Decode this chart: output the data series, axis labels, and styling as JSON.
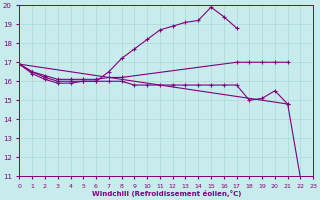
{
  "xlabel": "Windchill (Refroidissement éolien,°C)",
  "bg_color": "#c8ecec",
  "grid_color": "#a8d8d8",
  "line_color": "#800080",
  "xlim": [
    0,
    23
  ],
  "ylim": [
    11,
    20
  ],
  "yticks": [
    11,
    12,
    13,
    14,
    15,
    16,
    17,
    18,
    19,
    20
  ],
  "xticks": [
    0,
    1,
    2,
    3,
    4,
    5,
    6,
    7,
    8,
    9,
    10,
    11,
    12,
    13,
    14,
    15,
    16,
    17,
    18,
    19,
    20,
    21,
    22,
    23
  ],
  "series": [
    {
      "x": [
        0,
        1,
        2,
        3,
        4,
        5,
        6,
        7,
        8,
        9,
        10,
        11,
        12,
        13,
        14,
        15,
        16,
        17
      ],
      "y": [
        16.9,
        16.5,
        16.2,
        16.0,
        16.0,
        16.0,
        16.0,
        16.5,
        17.2,
        17.7,
        18.2,
        18.7,
        18.9,
        19.1,
        19.2,
        19.9,
        19.4,
        18.8
      ]
    },
    {
      "x": [
        0,
        1,
        2,
        3,
        4,
        5,
        6,
        7,
        8,
        17,
        18,
        19,
        20,
        21
      ],
      "y": [
        16.9,
        16.5,
        16.3,
        16.1,
        16.1,
        16.1,
        16.1,
        16.2,
        16.2,
        17.0,
        17.0,
        17.0,
        17.0,
        17.0
      ]
    },
    {
      "x": [
        0,
        1,
        2,
        3,
        4,
        5,
        6,
        7,
        8,
        9,
        10,
        11,
        12,
        13,
        14,
        15,
        16,
        17,
        18,
        19,
        20,
        21
      ],
      "y": [
        16.9,
        16.4,
        16.1,
        15.9,
        15.9,
        16.0,
        16.0,
        16.0,
        16.0,
        15.8,
        15.8,
        15.8,
        15.8,
        15.8,
        15.8,
        15.8,
        15.8,
        15.8,
        15.0,
        15.1,
        15.5,
        14.8
      ]
    },
    {
      "x": [
        0,
        21,
        22
      ],
      "y": [
        16.9,
        14.8,
        10.9
      ]
    }
  ]
}
